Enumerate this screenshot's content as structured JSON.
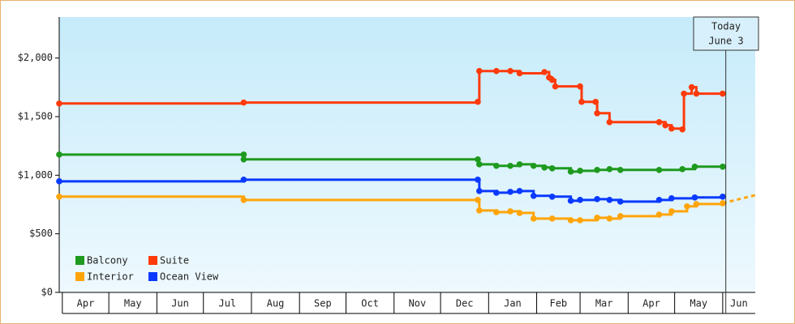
{
  "chart_data": {
    "type": "line",
    "step": true,
    "xlim": [
      -2,
      447
    ],
    "xticks": [
      {
        "value": 0,
        "label": "Apr"
      },
      {
        "value": 30,
        "label": "May"
      },
      {
        "value": 61,
        "label": "Jun"
      },
      {
        "value": 91,
        "label": "Jul"
      },
      {
        "value": 122,
        "label": "Aug"
      },
      {
        "value": 153,
        "label": "Sep"
      },
      {
        "value": 183,
        "label": "Oct"
      },
      {
        "value": 214,
        "label": "Nov"
      },
      {
        "value": 244,
        "label": "Dec"
      },
      {
        "value": 275,
        "label": "Jan"
      },
      {
        "value": 306,
        "label": "Feb"
      },
      {
        "value": 334,
        "label": "Mar"
      },
      {
        "value": 365,
        "label": "Apr"
      },
      {
        "value": 395,
        "label": "May"
      },
      {
        "value": 426,
        "label": "Jun"
      }
    ],
    "ylim": [
      0,
      2350
    ],
    "yticks": [
      {
        "value": 0,
        "label": "$0"
      },
      {
        "value": 500,
        "label": "$500"
      },
      {
        "value": 1000,
        "label": "$1,000"
      },
      {
        "value": 1500,
        "label": "$1,500"
      },
      {
        "value": 2000,
        "label": "$2,000"
      }
    ],
    "today": {
      "x": 428,
      "label": "Today",
      "date": "June 3"
    },
    "legend": "bottom-left",
    "series": [
      {
        "name": "Balcony",
        "color": "#1e9a1e",
        "x": [
          -2,
          117,
          117,
          268,
          269,
          280,
          289,
          295,
          304,
          311,
          316,
          328,
          334,
          345,
          353,
          360,
          385,
          400,
          408,
          426
        ],
        "values": [
          1176,
          1176,
          1135,
          1135,
          1093,
          1080,
          1080,
          1093,
          1080,
          1066,
          1059,
          1031,
          1038,
          1045,
          1052,
          1045,
          1045,
          1052,
          1073,
          1073
        ]
      },
      {
        "name": "Suite",
        "color": "#ff3a0a",
        "x": [
          -2,
          117,
          268,
          269,
          280,
          289,
          295,
          311,
          314,
          316,
          318,
          334,
          335,
          344,
          345,
          353,
          385,
          389,
          393,
          400,
          401,
          406,
          409,
          426
        ],
        "values": [
          1612,
          1620,
          1626,
          1889,
          1889,
          1889,
          1870,
          1880,
          1834,
          1813,
          1758,
          1758,
          1626,
          1626,
          1529,
          1453,
          1453,
          1426,
          1398,
          1391,
          1696,
          1751,
          1696,
          1696
        ]
      },
      {
        "name": "Interior",
        "color": "#ffa50a",
        "x": [
          -2,
          117,
          268,
          269,
          280,
          289,
          295,
          304,
          316,
          328,
          334,
          345,
          353,
          360,
          385,
          393,
          403,
          409,
          426
        ],
        "values": [
          817,
          789,
          789,
          699,
          685,
          692,
          678,
          630,
          630,
          616,
          616,
          637,
          630,
          651,
          664,
          692,
          734,
          754,
          761
        ],
        "projection": {
          "x": [
            426,
            447
          ],
          "values": [
            761,
            830
          ]
        }
      },
      {
        "name": "Ocean View",
        "color": "#0a3aff",
        "x": [
          -2,
          117,
          268,
          269,
          280,
          289,
          295,
          304,
          316,
          328,
          334,
          345,
          353,
          360,
          385,
          393,
          408,
          426
        ],
        "values": [
          948,
          962,
          962,
          865,
          851,
          858,
          865,
          824,
          817,
          782,
          789,
          796,
          789,
          775,
          789,
          803,
          810,
          817
        ]
      }
    ]
  }
}
